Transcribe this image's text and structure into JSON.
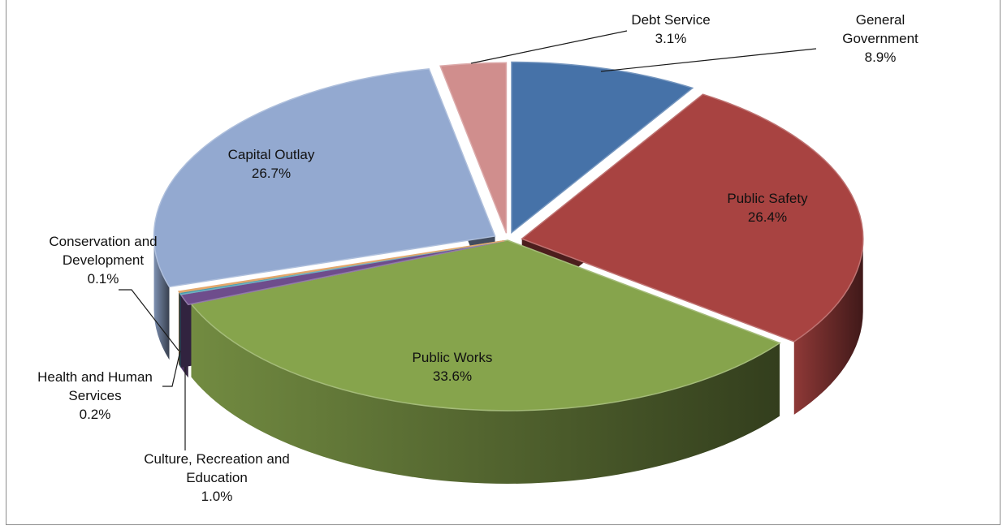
{
  "chart_data": {
    "type": "pie",
    "title": "",
    "style": "3d-exploded",
    "unit": "%",
    "slices": [
      {
        "label": "General Government",
        "label_lines": [
          "General",
          "Government"
        ],
        "value": 8.9,
        "display": "8.9%",
        "color": "#4672a8"
      },
      {
        "label": "Public Safety",
        "label_lines": [
          "Public Safety"
        ],
        "value": 26.4,
        "display": "26.4%",
        "color": "#a84341"
      },
      {
        "label": "Public Works",
        "label_lines": [
          "Public Works"
        ],
        "value": 33.6,
        "display": "33.6%",
        "color": "#86a44c"
      },
      {
        "label": "Culture, Recreation and Education",
        "label_lines": [
          "Culture, Recreation and",
          "Education"
        ],
        "value": 1.0,
        "display": "1.0%",
        "color": "#6e4d8c"
      },
      {
        "label": "Health and Human Services",
        "label_lines": [
          "Health and Human",
          "Services"
        ],
        "value": 0.2,
        "display": "0.2%",
        "color": "#3f98ae"
      },
      {
        "label": "Conservation and Development",
        "label_lines": [
          "Conservation and",
          "Development"
        ],
        "value": 0.1,
        "display": "0.1%",
        "color": "#d9893a"
      },
      {
        "label": "Capital Outlay",
        "label_lines": [
          "Capital Outlay"
        ],
        "value": 26.7,
        "display": "26.7%",
        "color": "#93a9d0"
      },
      {
        "label": "Debt Service",
        "label_lines": [
          "Debt Service"
        ],
        "value": 3.1,
        "display": "3.1%",
        "color": "#d08e8d"
      }
    ]
  }
}
